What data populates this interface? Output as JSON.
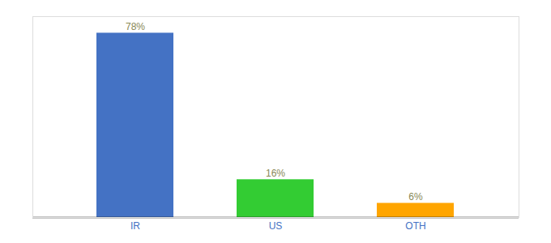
{
  "chart_data": {
    "type": "bar",
    "categories": [
      "IR",
      "US",
      "OTH"
    ],
    "values": [
      78,
      16,
      6
    ],
    "value_labels": [
      "78%",
      "16%",
      "6%"
    ],
    "data_labels": true,
    "colors": [
      "#4472C4",
      "#33CC33",
      "#FFA500"
    ],
    "ylim": [
      0,
      85
    ],
    "tick_labels": "x",
    "grid": false
  }
}
